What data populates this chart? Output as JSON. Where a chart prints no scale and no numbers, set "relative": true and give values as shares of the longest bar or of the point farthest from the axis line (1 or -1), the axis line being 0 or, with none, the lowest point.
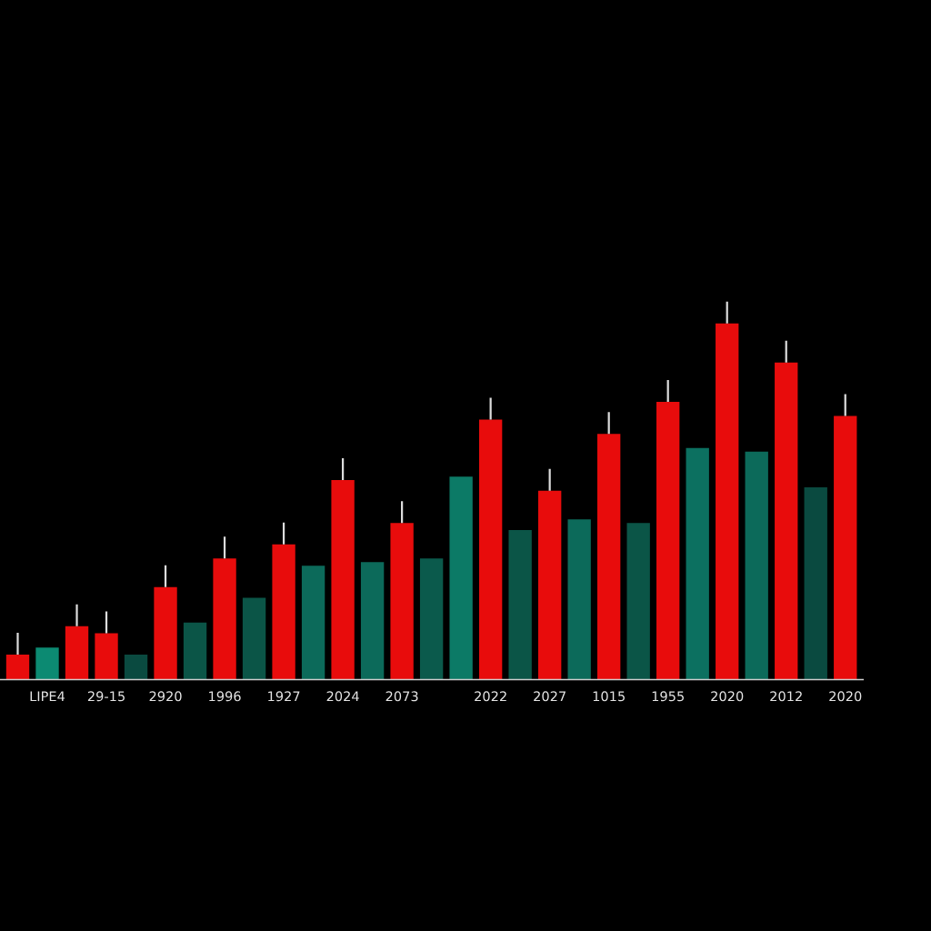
{
  "chart_data": {
    "type": "bar",
    "relative": true,
    "categories": [
      null,
      "LIPE4",
      null,
      "29-15",
      null,
      "2920",
      null,
      "1996",
      null,
      "1927",
      null,
      "2024",
      null,
      "2073",
      null,
      null,
      "2022",
      null,
      "2027",
      null,
      "1015",
      null,
      "1955",
      null,
      "2020",
      null,
      "2012",
      null,
      "2020"
    ],
    "series": [
      {
        "color": "#e80c0c",
        "values": [
          0.07,
          null,
          0.15,
          0.13,
          null,
          0.26,
          null,
          0.34,
          null,
          0.38,
          null,
          0.56,
          null,
          0.44,
          null,
          null,
          0.73,
          null,
          0.53,
          null,
          0.69,
          null,
          0.78,
          null,
          1,
          null,
          0.89,
          null,
          0.74
        ]
      },
      {
        "values": [
          null,
          0.09,
          null,
          null,
          0.07,
          null,
          0.16,
          null,
          0.23,
          null,
          0.32,
          null,
          0.33,
          null,
          0.34,
          0.57,
          null,
          0.42,
          null,
          0.45,
          null,
          0.44,
          null,
          0.65,
          null,
          0.64,
          null,
          0.54,
          null
        ],
        "colors": [
          null,
          "#0c8a72",
          null,
          null,
          "#0a4a40",
          null,
          "#0b5547",
          null,
          "#0b5547",
          null,
          "#0c6a5a",
          null,
          "#0c6a5a",
          null,
          "#0b5a4c",
          "#0c7a66",
          null,
          "#0b5547",
          null,
          "#0c6a5a",
          null,
          "#0b5547",
          null,
          "#0c7060",
          null,
          "#0c6a5a",
          null,
          "#0a4a40",
          null
        ]
      }
    ]
  }
}
